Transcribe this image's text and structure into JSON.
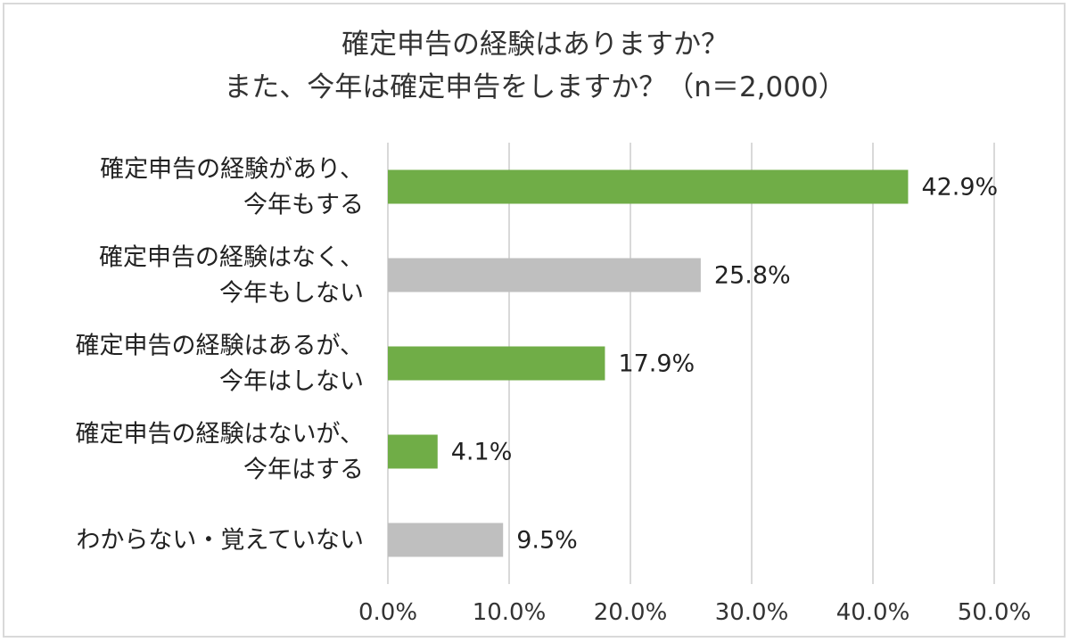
{
  "chart_data": {
    "type": "bar",
    "orientation": "horizontal",
    "title": [
      "確定申告の経験はありますか？",
      "また、今年は確定申告をしますか？（n＝2,000）"
    ],
    "categories": [
      [
        "確定申告の経験があり、",
        "今年もする"
      ],
      [
        "確定申告の経験はなく、",
        "今年もしない"
      ],
      [
        "確定申告の経験はあるが、",
        "今年はしない"
      ],
      [
        "確定申告の経験はないが、",
        "今年はする"
      ],
      [
        "わからない・覚えていない"
      ]
    ],
    "values": [
      42.9,
      25.8,
      17.9,
      4.1,
      9.5
    ],
    "data_labels": [
      "42.9%",
      "25.8%",
      "17.9%",
      "4.1%",
      "9.5%"
    ],
    "bar_colors": [
      "#70ad47",
      "#bfbfbf",
      "#70ad47",
      "#70ad47",
      "#bfbfbf"
    ],
    "xlim": [
      0,
      50
    ],
    "x_ticks": [
      0,
      10,
      20,
      30,
      40,
      50
    ],
    "x_tick_labels": [
      "0.0%",
      "10.0%",
      "20.0%",
      "30.0%",
      "40.0%",
      "50.0%"
    ],
    "grid": "vertical",
    "legend": "none"
  },
  "colors": {
    "grid": "#d9d9d9",
    "green": "#70ad47",
    "gray": "#bfbfbf",
    "border": "#d9d9d9"
  }
}
